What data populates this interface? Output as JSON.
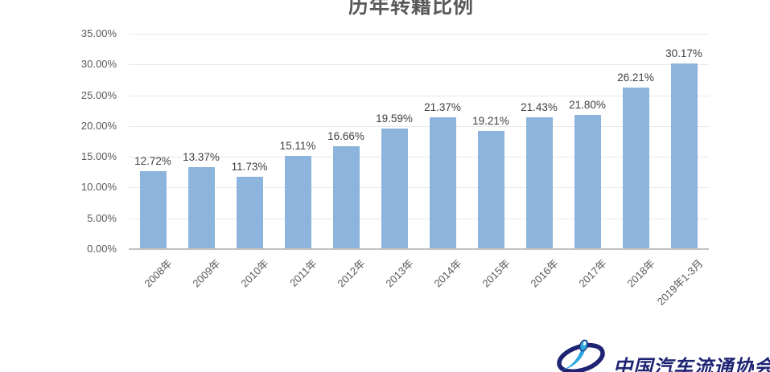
{
  "chart_data": {
    "type": "bar",
    "title": "历年转籍比例",
    "categories": [
      "2008年",
      "2009年",
      "2010年",
      "2011年",
      "2012年",
      "2013年",
      "2014年",
      "2015年",
      "2016年",
      "2017年",
      "2018年",
      "2019年1-3月"
    ],
    "values": [
      12.72,
      13.37,
      11.73,
      15.11,
      16.66,
      19.59,
      21.37,
      19.21,
      21.43,
      21.8,
      26.21,
      30.17
    ],
    "value_labels": [
      "12.72%",
      "13.37%",
      "11.73%",
      "15.11%",
      "16.66%",
      "19.59%",
      "21.37%",
      "19.21%",
      "21.43%",
      "21.80%",
      "26.21%",
      "30.17%"
    ],
    "xlabel": "",
    "ylabel": "",
    "ylim": [
      0,
      35
    ],
    "ytick_step": 5,
    "yticks": [
      "0.00%",
      "5.00%",
      "10.00%",
      "15.00%",
      "20.00%",
      "25.00%",
      "30.00%",
      "35.00%"
    ],
    "grid": true,
    "legend": "none",
    "bar_color": "#8db4dc"
  },
  "branding": {
    "org_name": "中国汽车流通协会",
    "logo_icon": "cada-swoosh-logo",
    "navy_color": "#1e2473",
    "light_blue_color": "#2ea8df"
  }
}
